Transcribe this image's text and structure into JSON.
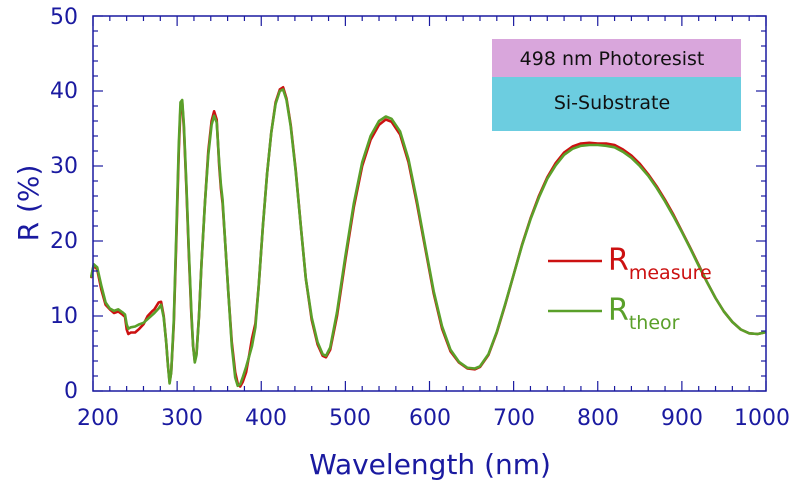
{
  "chart_data": {
    "type": "line",
    "title": "",
    "xlabel": "Wavelength (nm)",
    "ylabel": "R (%)",
    "xlim": [
      200,
      1000
    ],
    "ylim": [
      0,
      50
    ],
    "x_ticks": [
      "200",
      "300",
      "400",
      "500",
      "600",
      "700",
      "800",
      "900",
      "1000"
    ],
    "y_ticks": [
      "0",
      "10",
      "20",
      "30",
      "40",
      "50"
    ],
    "grid": false,
    "legend": "center-right",
    "series": [
      {
        "name": "R_measure",
        "label_main": "R",
        "label_sub": "measure",
        "color": "#cc1111",
        "points": [
          [
            198,
            15.2
          ],
          [
            201,
            16.8
          ],
          [
            205,
            16.2
          ],
          [
            210,
            13.5
          ],
          [
            215,
            11.5
          ],
          [
            220,
            10.9
          ],
          [
            225,
            10.4
          ],
          [
            230,
            10.6
          ],
          [
            235,
            10.2
          ],
          [
            238,
            9.9
          ],
          [
            240,
            8.2
          ],
          [
            242,
            7.6
          ],
          [
            245,
            7.8
          ],
          [
            250,
            7.8
          ],
          [
            255,
            8.3
          ],
          [
            260,
            8.9
          ],
          [
            265,
            10.0
          ],
          [
            270,
            10.6
          ],
          [
            273,
            10.9
          ],
          [
            278,
            11.8
          ],
          [
            281,
            11.9
          ],
          [
            284,
            10.0
          ],
          [
            287,
            6.5
          ],
          [
            289,
            3.5
          ],
          [
            291,
            1.2
          ],
          [
            293,
            2.5
          ],
          [
            296,
            9.0
          ],
          [
            299,
            20.0
          ],
          [
            302,
            32.0
          ],
          [
            304,
            37.8
          ],
          [
            306,
            38.5
          ],
          [
            308,
            35.0
          ],
          [
            311,
            27.0
          ],
          [
            314,
            18.0
          ],
          [
            317,
            10.0
          ],
          [
            319,
            6.0
          ],
          [
            321,
            4.0
          ],
          [
            323,
            5.0
          ],
          [
            326,
            10.0
          ],
          [
            329,
            17.0
          ],
          [
            333,
            25.0
          ],
          [
            337,
            32.0
          ],
          [
            341,
            36.0
          ],
          [
            344,
            37.3
          ],
          [
            347,
            36.2
          ],
          [
            350,
            30.0
          ],
          [
            352,
            27.0
          ],
          [
            354,
            25.0
          ],
          [
            357,
            20.0
          ],
          [
            361,
            13.0
          ],
          [
            365,
            6.5
          ],
          [
            369,
            2.5
          ],
          [
            372,
            1.0
          ],
          [
            375,
            0.6
          ],
          [
            378,
            1.2
          ],
          [
            382,
            2.5
          ],
          [
            386,
            5.0
          ],
          [
            389,
            7.0
          ],
          [
            393,
            9.0
          ],
          [
            397,
            14.0
          ],
          [
            402,
            22.0
          ],
          [
            407,
            29.0
          ],
          [
            412,
            34.5
          ],
          [
            417,
            38.5
          ],
          [
            422,
            40.2
          ],
          [
            426,
            40.5
          ],
          [
            430,
            39.0
          ],
          [
            435,
            35.5
          ],
          [
            441,
            29.5
          ],
          [
            447,
            22.0
          ],
          [
            453,
            15.0
          ],
          [
            460,
            9.5
          ],
          [
            467,
            6.2
          ],
          [
            473,
            4.7
          ],
          [
            477,
            4.5
          ],
          [
            482,
            5.5
          ],
          [
            490,
            10.0
          ],
          [
            500,
            17.5
          ],
          [
            510,
            24.5
          ],
          [
            520,
            30.0
          ],
          [
            530,
            33.5
          ],
          [
            540,
            35.5
          ],
          [
            548,
            36.2
          ],
          [
            555,
            35.9
          ],
          [
            565,
            34.2
          ],
          [
            575,
            30.5
          ],
          [
            585,
            25.0
          ],
          [
            595,
            19.0
          ],
          [
            605,
            13.0
          ],
          [
            615,
            8.3
          ],
          [
            625,
            5.3
          ],
          [
            635,
            3.8
          ],
          [
            645,
            3.0
          ],
          [
            654,
            2.9
          ],
          [
            660,
            3.2
          ],
          [
            670,
            4.8
          ],
          [
            680,
            7.8
          ],
          [
            690,
            11.5
          ],
          [
            700,
            15.5
          ],
          [
            710,
            19.5
          ],
          [
            720,
            23.0
          ],
          [
            730,
            26.0
          ],
          [
            740,
            28.5
          ],
          [
            750,
            30.4
          ],
          [
            760,
            31.8
          ],
          [
            770,
            32.6
          ],
          [
            780,
            33.0
          ],
          [
            790,
            33.1
          ],
          [
            800,
            33.0
          ],
          [
            810,
            33.0
          ],
          [
            820,
            32.8
          ],
          [
            830,
            32.2
          ],
          [
            840,
            31.4
          ],
          [
            850,
            30.3
          ],
          [
            860,
            28.9
          ],
          [
            870,
            27.3
          ],
          [
            880,
            25.5
          ],
          [
            890,
            23.5
          ],
          [
            900,
            21.3
          ],
          [
            910,
            19.1
          ],
          [
            920,
            16.8
          ],
          [
            930,
            14.5
          ],
          [
            940,
            12.4
          ],
          [
            950,
            10.6
          ],
          [
            960,
            9.2
          ],
          [
            970,
            8.2
          ],
          [
            980,
            7.7
          ],
          [
            990,
            7.6
          ],
          [
            998,
            7.8
          ]
        ]
      },
      {
        "name": "R_theor",
        "label_main": "R",
        "label_sub": "theor",
        "color": "#5aa02a",
        "points": [
          [
            198,
            15.3
          ],
          [
            201,
            16.9
          ],
          [
            205,
            16.5
          ],
          [
            210,
            14.0
          ],
          [
            215,
            11.8
          ],
          [
            220,
            11.0
          ],
          [
            225,
            10.7
          ],
          [
            230,
            10.9
          ],
          [
            235,
            10.5
          ],
          [
            238,
            10.2
          ],
          [
            240,
            8.9
          ],
          [
            242,
            8.3
          ],
          [
            245,
            8.5
          ],
          [
            250,
            8.6
          ],
          [
            255,
            8.9
          ],
          [
            260,
            9.1
          ],
          [
            265,
            9.6
          ],
          [
            270,
            10.1
          ],
          [
            273,
            10.4
          ],
          [
            278,
            11.0
          ],
          [
            281,
            11.5
          ],
          [
            284,
            9.8
          ],
          [
            287,
            6.5
          ],
          [
            289,
            3.5
          ],
          [
            291,
            1.0
          ],
          [
            293,
            2.5
          ],
          [
            296,
            9.5
          ],
          [
            299,
            21.0
          ],
          [
            302,
            33.0
          ],
          [
            304,
            38.5
          ],
          [
            306,
            38.8
          ],
          [
            308,
            35.5
          ],
          [
            311,
            27.5
          ],
          [
            314,
            18.5
          ],
          [
            317,
            10.5
          ],
          [
            319,
            6.0
          ],
          [
            321,
            3.8
          ],
          [
            323,
            4.8
          ],
          [
            326,
            10.0
          ],
          [
            329,
            17.0
          ],
          [
            333,
            25.0
          ],
          [
            337,
            31.5
          ],
          [
            341,
            35.5
          ],
          [
            344,
            36.7
          ],
          [
            347,
            35.8
          ],
          [
            350,
            30.5
          ],
          [
            352,
            27.5
          ],
          [
            354,
            25.5
          ],
          [
            357,
            20.0
          ],
          [
            361,
            13.0
          ],
          [
            365,
            6.0
          ],
          [
            369,
            1.8
          ],
          [
            372,
            0.7
          ],
          [
            375,
            0.9
          ],
          [
            378,
            1.8
          ],
          [
            382,
            3.2
          ],
          [
            386,
            4.8
          ],
          [
            389,
            6.0
          ],
          [
            393,
            8.5
          ],
          [
            397,
            14.0
          ],
          [
            402,
            22.0
          ],
          [
            407,
            29.0
          ],
          [
            412,
            34.5
          ],
          [
            417,
            38.3
          ],
          [
            422,
            40.0
          ],
          [
            426,
            40.2
          ],
          [
            430,
            38.8
          ],
          [
            435,
            35.3
          ],
          [
            441,
            29.3
          ],
          [
            447,
            22.0
          ],
          [
            453,
            15.0
          ],
          [
            460,
            9.8
          ],
          [
            467,
            6.5
          ],
          [
            473,
            4.9
          ],
          [
            477,
            4.7
          ],
          [
            482,
            5.8
          ],
          [
            490,
            10.5
          ],
          [
            500,
            18.0
          ],
          [
            510,
            25.0
          ],
          [
            520,
            30.5
          ],
          [
            530,
            34.0
          ],
          [
            540,
            36.0
          ],
          [
            548,
            36.6
          ],
          [
            555,
            36.3
          ],
          [
            565,
            34.6
          ],
          [
            575,
            30.9
          ],
          [
            585,
            25.4
          ],
          [
            595,
            19.3
          ],
          [
            605,
            13.3
          ],
          [
            615,
            8.6
          ],
          [
            625,
            5.5
          ],
          [
            635,
            3.9
          ],
          [
            645,
            3.1
          ],
          [
            654,
            3.0
          ],
          [
            660,
            3.3
          ],
          [
            670,
            4.9
          ],
          [
            680,
            7.9
          ],
          [
            690,
            11.6
          ],
          [
            700,
            15.5
          ],
          [
            710,
            19.4
          ],
          [
            720,
            22.9
          ],
          [
            730,
            25.8
          ],
          [
            740,
            28.3
          ],
          [
            750,
            30.1
          ],
          [
            760,
            31.5
          ],
          [
            770,
            32.3
          ],
          [
            780,
            32.7
          ],
          [
            790,
            32.8
          ],
          [
            800,
            32.8
          ],
          [
            810,
            32.7
          ],
          [
            820,
            32.5
          ],
          [
            830,
            31.9
          ],
          [
            840,
            31.1
          ],
          [
            850,
            30.0
          ],
          [
            860,
            28.7
          ],
          [
            870,
            27.1
          ],
          [
            880,
            25.3
          ],
          [
            890,
            23.3
          ],
          [
            900,
            21.2
          ],
          [
            910,
            19.0
          ],
          [
            920,
            16.7
          ],
          [
            930,
            14.5
          ],
          [
            940,
            12.4
          ],
          [
            950,
            10.6
          ],
          [
            960,
            9.2
          ],
          [
            970,
            8.2
          ],
          [
            980,
            7.7
          ],
          [
            990,
            7.6
          ],
          [
            998,
            7.8
          ]
        ]
      }
    ],
    "inset": {
      "layers": [
        {
          "label": "498 nm Photoresist",
          "color": "#d9a6dc"
        },
        {
          "label": "Si-Substrate",
          "color": "#6ccde0"
        }
      ]
    }
  }
}
